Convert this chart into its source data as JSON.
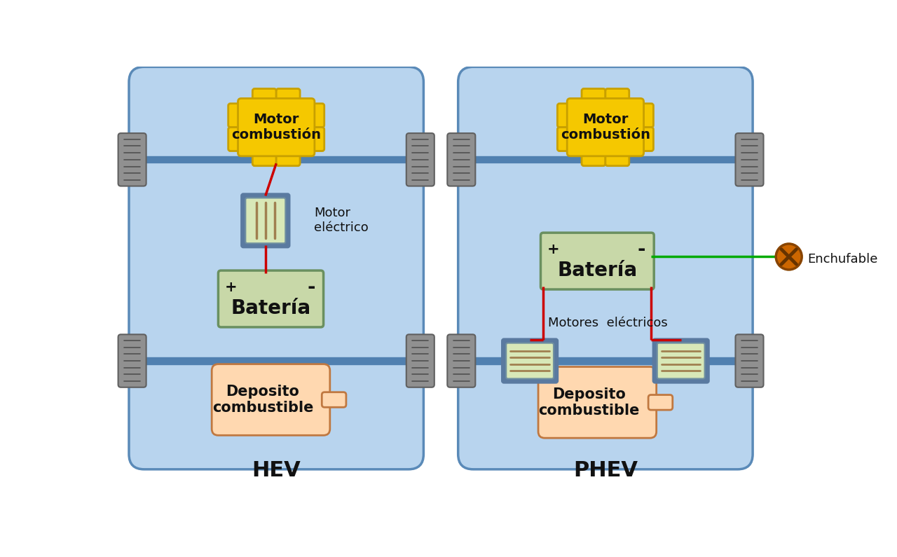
{
  "bg_color": "#ffffff",
  "car_body_color": "#b8d4ee",
  "car_border_color": "#5a8ab8",
  "axle_color": "#5080b0",
  "tire_color": "#909090",
  "tire_border": "#606060",
  "engine_color": "#f5c800",
  "engine_border": "#c8a000",
  "battery_color": "#c8d8a8",
  "battery_border": "#6a9060",
  "motor_outer_color": "#5a7aa0",
  "motor_inner_color": "#d8e8b8",
  "motor_stripe": "#a08050",
  "tank_color": "#ffd8b0",
  "tank_border": "#c07840",
  "wire_red": "#cc0000",
  "wire_green": "#00aa00",
  "plug_fill": "#cc6600",
  "plug_border": "#884400",
  "plug_x_color": "#663300",
  "label_color": "#111111",
  "title_color": "#111111",
  "hev_label": "HEV",
  "phev_label": "PHEV",
  "motor_combustion_label": "Motor\ncombustión",
  "motor_electrico_label": "Motor\neléctrico",
  "motores_electricos_label": "Motores  eléctricos",
  "bateria_label": "Batería",
  "deposito_label": "Deposito\ncombustible",
  "enchufable_label": "Enchufable",
  "plus_label": "+",
  "minus_label": "-"
}
